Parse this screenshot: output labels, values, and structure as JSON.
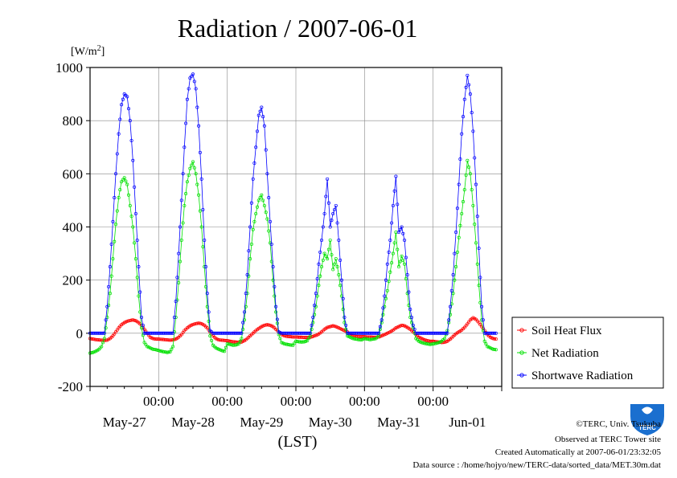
{
  "chart_data": {
    "type": "line",
    "title": "Radiation / 2007-06-01",
    "ylabel": "[W/m²]",
    "xlabel": "(LST)",
    "ylim": [
      -200,
      1000
    ],
    "yticks": [
      -200,
      0,
      200,
      400,
      600,
      800,
      1000
    ],
    "xlim_hours": [
      0,
      144
    ],
    "time_ticks": [
      "00:00",
      "00:00",
      "00:00",
      "00:00",
      "00:00"
    ],
    "date_labels": [
      "May-27",
      "May-28",
      "May-29",
      "May-30",
      "May-31",
      "Jun-01"
    ],
    "grid": true,
    "legend_position": "right",
    "series": [
      {
        "name": "Soil Heat Flux",
        "color": "#ff0000",
        "days": [
          {
            "x0": 0.0,
            "values": [
              -20,
              -22,
              -24,
              -25,
              -26,
              -27,
              -26,
              -20,
              -10,
              5,
              20,
              32,
              40,
              45,
              48,
              50,
              47,
              40,
              30,
              15,
              0,
              -15,
              -20,
              -22
            ]
          },
          {
            "x0": 24.0,
            "values": [
              -22,
              -23,
              -24,
              -25,
              -26,
              -25,
              -22,
              -15,
              -5,
              10,
              20,
              28,
              33,
              36,
              38,
              36,
              30,
              20,
              5,
              -10,
              -20,
              -25,
              -26,
              -27
            ]
          },
          {
            "x0": 48.0,
            "values": [
              -28,
              -30,
              -32,
              -33,
              -34,
              -33,
              -28,
              -20,
              -10,
              0,
              10,
              18,
              25,
              30,
              32,
              30,
              25,
              15,
              5,
              -5,
              -10,
              -12,
              -13,
              -14
            ]
          },
          {
            "x0": 72.0,
            "values": [
              -14,
              -15,
              -15,
              -16,
              -16,
              -15,
              -12,
              -8,
              -3,
              5,
              15,
              22,
              25,
              28,
              25,
              20,
              15,
              10,
              5,
              -5,
              -10,
              -12,
              -13,
              -13
            ]
          },
          {
            "x0": 96.0,
            "values": [
              -13,
              -14,
              -14,
              -15,
              -15,
              -14,
              -10,
              -5,
              0,
              5,
              12,
              20,
              25,
              30,
              28,
              22,
              15,
              5,
              -5,
              -15,
              -20,
              -25,
              -28,
              -30
            ]
          },
          {
            "x0": 120.0,
            "values": [
              -30,
              -32,
              -33,
              -35,
              -34,
              -30,
              -22,
              -12,
              -2,
              5,
              12,
              22,
              35,
              50,
              58,
              52,
              40,
              25,
              10,
              -5,
              -15,
              -20,
              -22
            ]
          }
        ]
      },
      {
        "name": "Net Radiation",
        "color": "#00e000",
        "days": [
          {
            "x0": 0.0,
            "values": [
              -75,
              -72,
              -68,
              -62,
              -50,
              -20,
              60,
              150,
              280,
              410,
              510,
              570,
              585,
              560,
              480,
              400,
              280,
              140,
              20,
              -35,
              -50,
              -55,
              -60,
              -62
            ]
          },
          {
            "x0": 24.0,
            "values": [
              -65,
              -68,
              -70,
              -72,
              -70,
              -50,
              60,
              190,
              350,
              480,
              570,
              620,
              645,
              600,
              520,
              400,
              250,
              100,
              -10,
              -45,
              -55,
              -60,
              -65,
              -68
            ]
          },
          {
            "x0": 48.0,
            "values": [
              -40,
              -42,
              -45,
              -44,
              -40,
              -20,
              50,
              150,
              280,
              390,
              450,
              500,
              520,
              480,
              430,
              340,
              200,
              80,
              -5,
              -35,
              -40,
              -42,
              -44,
              -45
            ]
          },
          {
            "x0": 72.0,
            "values": [
              -30,
              -32,
              -33,
              -32,
              -28,
              -10,
              40,
              100,
              180,
              250,
              300,
              280,
              350,
              240,
              280,
              220,
              140,
              40,
              -10,
              -15,
              -20,
              -22,
              -24,
              -25
            ]
          },
          {
            "x0": 96.0,
            "values": [
              -20,
              -22,
              -24,
              -22,
              -20,
              -10,
              40,
              100,
              160,
              230,
              300,
              380,
              250,
              290,
              260,
              150,
              60,
              20,
              -20,
              -30,
              -35,
              -38,
              -40,
              -42
            ]
          },
          {
            "x0": 120.0,
            "values": [
              -40,
              -38,
              -35,
              -30,
              -20,
              10,
              70,
              150,
              250,
              360,
              450,
              540,
              650,
              600,
              480,
              340,
              180,
              50,
              -30,
              -50,
              -55,
              -60,
              -62
            ]
          }
        ]
      },
      {
        "name": "Shortwave Radiation",
        "color": "#0000ff",
        "days": [
          {
            "x0": 0.0,
            "values": [
              0,
              0,
              0,
              0,
              0,
              0,
              100,
              250,
              420,
              600,
              750,
              860,
              900,
              890,
              800,
              650,
              450,
              250,
              60,
              0,
              0,
              0,
              0,
              0
            ]
          },
          {
            "x0": 24.0,
            "values": [
              0,
              0,
              0,
              0,
              0,
              0,
              120,
              300,
              500,
              700,
              880,
              960,
              975,
              920,
              780,
              580,
              350,
              150,
              10,
              0,
              0,
              0,
              0,
              0
            ]
          },
          {
            "x0": 48.0,
            "values": [
              0,
              0,
              0,
              0,
              0,
              0,
              80,
              220,
              400,
              580,
              700,
              820,
              850,
              780,
              600,
              420,
              250,
              100,
              5,
              0,
              0,
              0,
              0,
              0
            ]
          },
          {
            "x0": 72.0,
            "values": [
              0,
              0,
              0,
              0,
              0,
              0,
              60,
              150,
              260,
              350,
              450,
              580,
              400,
              450,
              480,
              350,
              200,
              60,
              0,
              0,
              0,
              0,
              0,
              0
            ]
          },
          {
            "x0": 96.0,
            "values": [
              0,
              0,
              0,
              0,
              0,
              0,
              50,
              140,
              260,
              350,
              480,
              590,
              380,
              400,
              350,
              220,
              90,
              30,
              0,
              0,
              0,
              0,
              0,
              0
            ]
          },
          {
            "x0": 120.0,
            "values": [
              0,
              0,
              0,
              0,
              0,
              0,
              100,
              220,
              380,
              560,
              750,
              880,
              970,
              900,
              760,
              560,
              320,
              100,
              0,
              0,
              0,
              0,
              0
            ]
          }
        ]
      }
    ]
  },
  "footer": {
    "copyright": "©TERC, Univ. Tsukuba",
    "observed": "Observed at TERC Tower site",
    "created": "Created Automatically at 2007-06-01/23:32:05",
    "source": "Data source : /home/hojyo/new/TERC-data/sorted_data/MET.30m.dat"
  },
  "logo": {
    "text": "TERC",
    "color": "#1a6fcf"
  }
}
